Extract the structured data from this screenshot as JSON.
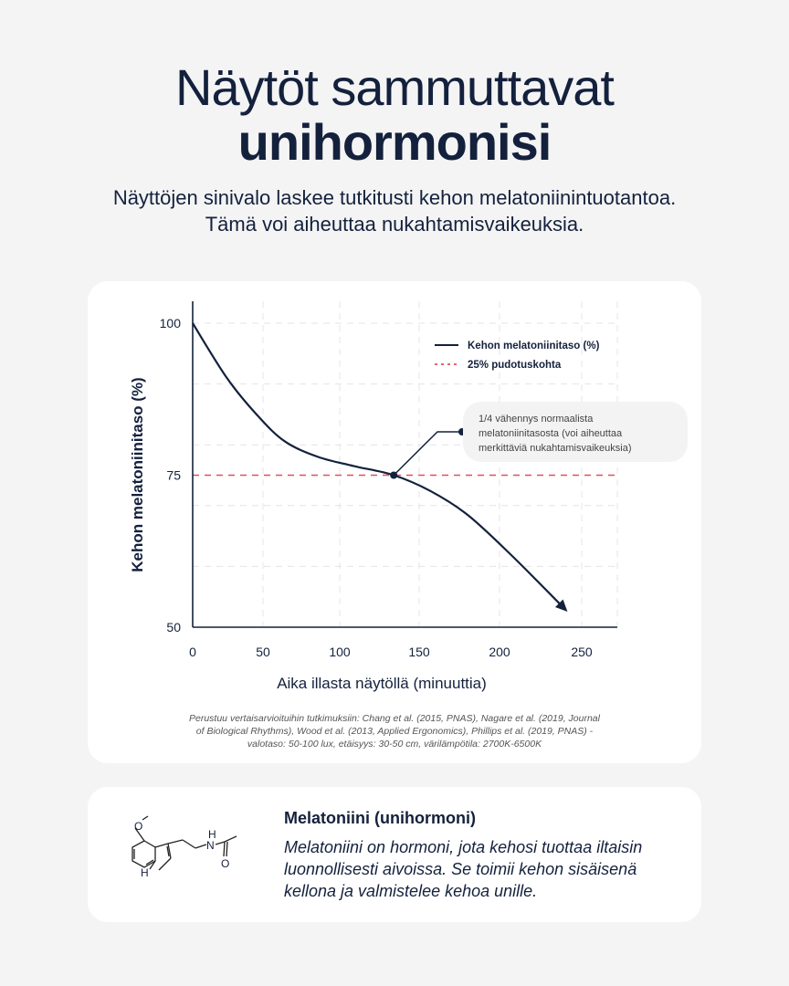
{
  "header": {
    "title_line1": "Näytöt sammuttavat",
    "title_line2": "unihormonisi",
    "subtitle_line1": "Näyttöjen sinivalo laskee tutkitusti kehon melatoniinintuotantoa.",
    "subtitle_line2": "Tämä voi aiheuttaa nukahtamisvaikeuksia."
  },
  "chart_data": {
    "type": "line",
    "xlabel": "Aika illasta näytöllä (minuuttia)",
    "ylabel": "Kehon melatoniinitaso (%)",
    "x_ticks": [
      0,
      50,
      100,
      150,
      200,
      250
    ],
    "y_ticks": [
      50,
      75,
      100
    ],
    "xlim": [
      0,
      275
    ],
    "ylim": [
      50,
      100
    ],
    "grid": true,
    "legend_position": "top-right",
    "series": [
      {
        "name": "Kehon melatoniinitaso (%)",
        "color": "#14213d",
        "style": "solid",
        "arrow_end": true,
        "x": [
          0,
          24,
          45,
          64,
          86,
          109,
          134,
          157,
          180,
          207,
          239
        ],
        "y": [
          100,
          91.1,
          85.1,
          80.6,
          78,
          76.5,
          75,
          72.4,
          68.5,
          61.9,
          53.2
        ]
      }
    ],
    "reference_line": {
      "name": "25% pudotuskohta",
      "y": 75,
      "color": "#e0505a",
      "style": "dashed"
    },
    "annotation": {
      "x": 134,
      "y": 75,
      "text_line1": "1/4 vähennys normaalista",
      "text_line2": "melatoniinitasosta (voi aiheuttaa",
      "text_line3": "merkittäviä nukahtamisvaikeuksia)"
    }
  },
  "footnote": {
    "line1": "Perustuu vertaisarvioituihin tutkimuksiin: Chang et al. (2015, PNAS), Nagare et al. (2019, Journal",
    "line2": "of Biological Rhythms), Wood et al. (2013, Applied Ergonomics), Phillips et al. (2019, PNAS) -",
    "line3": "valotaso: 50-100 lux, etäisyys: 30-50 cm, värilämpötila: 2700K-6500K"
  },
  "info": {
    "title": "Melatoniini (unihormoni)",
    "text": "Melatoniini on hormoni, jota kehosi tuottaa iltaisin luonnollisesti aivoissa. Se toimii kehon sisäisenä kellona ja valmistelee kehoa unille.",
    "molecule_labels": {
      "o": "O",
      "n": "N",
      "nh": "H",
      "h": "H",
      "o2": "O"
    }
  }
}
